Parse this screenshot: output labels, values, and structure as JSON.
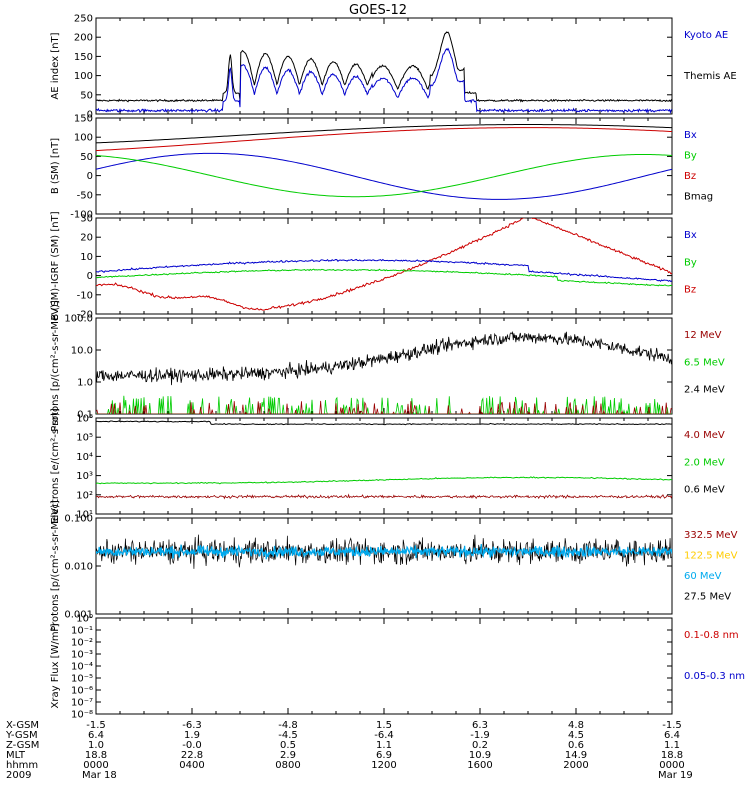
{
  "title": "GOES-12",
  "colors": {
    "blue": "#0000cc",
    "black": "#000000",
    "green": "#00cc00",
    "red": "#cc0000",
    "darkred": "#990000",
    "cyan": "#00aaee",
    "yellow": "#ffcc00"
  },
  "x_ticks": [
    "",
    "",
    "",
    "",
    "",
    "",
    ""
  ],
  "ephemeris": {
    "rows": [
      {
        "label": "X-GSM",
        "values": [
          "-1.5",
          "-6.3",
          "-4.8",
          "1.5",
          "6.3",
          "4.8",
          "-1.5"
        ]
      },
      {
        "label": "Y-GSM",
        "values": [
          "6.4",
          "1.9",
          "-4.5",
          "-6.4",
          "-1.9",
          "4.5",
          "6.4"
        ]
      },
      {
        "label": "Z-GSM",
        "values": [
          "1.0",
          "-0.0",
          "0.5",
          "1.1",
          "0.2",
          "0.6",
          "1.1"
        ]
      },
      {
        "label": "MLT",
        "values": [
          "18.8",
          "22.8",
          "2.9",
          "6.9",
          "10.9",
          "14.9",
          "18.8"
        ]
      },
      {
        "label": "hhmm",
        "values": [
          "0000",
          "0400",
          "0800",
          "1200",
          "1600",
          "2000",
          "0000"
        ]
      }
    ],
    "date_label": "2009",
    "start_date": "Mar 18",
    "end_date": "Mar 19"
  },
  "chart_data": [
    {
      "type": "line",
      "ylabel": "AE index [nT]",
      "yticks": [
        "0",
        "50",
        "100",
        "150",
        "200",
        "250"
      ],
      "ylim": [
        0,
        250
      ],
      "series": [
        {
          "name": "Kyoto AE",
          "color": "#0000cc"
        },
        {
          "name": "Themis AE",
          "color": "#000000"
        }
      ]
    },
    {
      "type": "line",
      "ylabel": "B (SM) [nT]",
      "yticks": [
        "-100",
        "-50",
        "0",
        "50",
        "100",
        "150"
      ],
      "ylim": [
        -100,
        150
      ],
      "series": [
        {
          "name": "Bx",
          "color": "#0000cc"
        },
        {
          "name": "By",
          "color": "#00cc00"
        },
        {
          "name": "Bz",
          "color": "#cc0000"
        },
        {
          "name": "Bmag",
          "color": "#000000"
        }
      ]
    },
    {
      "type": "line",
      "ylabel": "B (SM)-IGRF (SM) [nT]",
      "yticks": [
        "-20",
        "-10",
        "0",
        "10",
        "20",
        "30"
      ],
      "ylim": [
        -20,
        30
      ],
      "series": [
        {
          "name": "Bx",
          "color": "#0000cc"
        },
        {
          "name": "By",
          "color": "#00cc00"
        },
        {
          "name": "Bz",
          "color": "#cc0000"
        }
      ]
    },
    {
      "type": "line",
      "ylabel": "Protons [p/(cm²-s-sr-MeV)]",
      "yticks": [
        "0.1",
        "1.0",
        "10.0",
        "100.0"
      ],
      "ylim": [
        0.1,
        100
      ],
      "log": true,
      "series": [
        {
          "name": "12 MeV",
          "color": "#990000"
        },
        {
          "name": "6.5 MeV",
          "color": "#00cc00"
        },
        {
          "name": "2.4 MeV",
          "color": "#000000"
        }
      ]
    },
    {
      "type": "line",
      "ylabel": "Electrons [e/(cm²-s-sr)]",
      "yticks": [
        "10¹",
        "10²",
        "10³",
        "10⁴",
        "10⁵",
        "10⁶"
      ],
      "ylim": [
        10,
        1000000
      ],
      "log": true,
      "series": [
        {
          "name": "4.0 MeV",
          "color": "#990000"
        },
        {
          "name": "2.0 MeV",
          "color": "#00cc00"
        },
        {
          "name": "0.6 MeV",
          "color": "#000000"
        }
      ]
    },
    {
      "type": "line",
      "ylabel": "Protons [p/(cm²-s-sr-MeV)]",
      "yticks": [
        "0.001",
        "0.010",
        "0.100"
      ],
      "ylim": [
        0.001,
        0.1
      ],
      "log": true,
      "series": [
        {
          "name": "332.5 MeV",
          "color": "#990000"
        },
        {
          "name": "122.5 MeV",
          "color": "#ffcc00"
        },
        {
          "name": "60 MeV",
          "color": "#00aaee"
        },
        {
          "name": "27.5 MeV",
          "color": "#000000"
        }
      ]
    },
    {
      "type": "line",
      "ylabel": "Xray Flux [W/m²]",
      "yticks": [
        "10⁻⁸",
        "10⁻⁷",
        "10⁻⁶",
        "10⁻⁵",
        "10⁻⁴",
        "10⁻³",
        "10⁻²",
        "10⁻¹",
        "10⁰"
      ],
      "ylim": [
        1e-08,
        1
      ],
      "log": true,
      "series": [
        {
          "name": "0.1-0.8 nm",
          "color": "#cc0000"
        },
        {
          "name": "0.05-0.3 nm",
          "color": "#0000cc"
        }
      ]
    }
  ]
}
